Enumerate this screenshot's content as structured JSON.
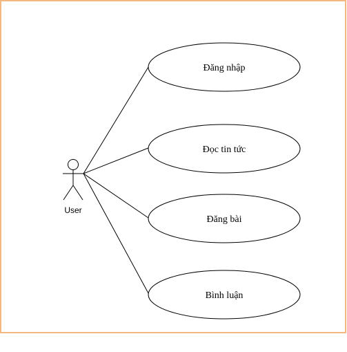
{
  "diagram": {
    "type": "use-case",
    "frame_color": "#F5B880",
    "line_color": "#000000",
    "fill_color": "#FFFFFF",
    "actor": {
      "label": "User"
    },
    "use_cases": [
      {
        "label": "Đăng nhập"
      },
      {
        "label": "Đọc tin tức"
      },
      {
        "label": "Đăng bài"
      },
      {
        "label": "Bình luận"
      }
    ]
  }
}
